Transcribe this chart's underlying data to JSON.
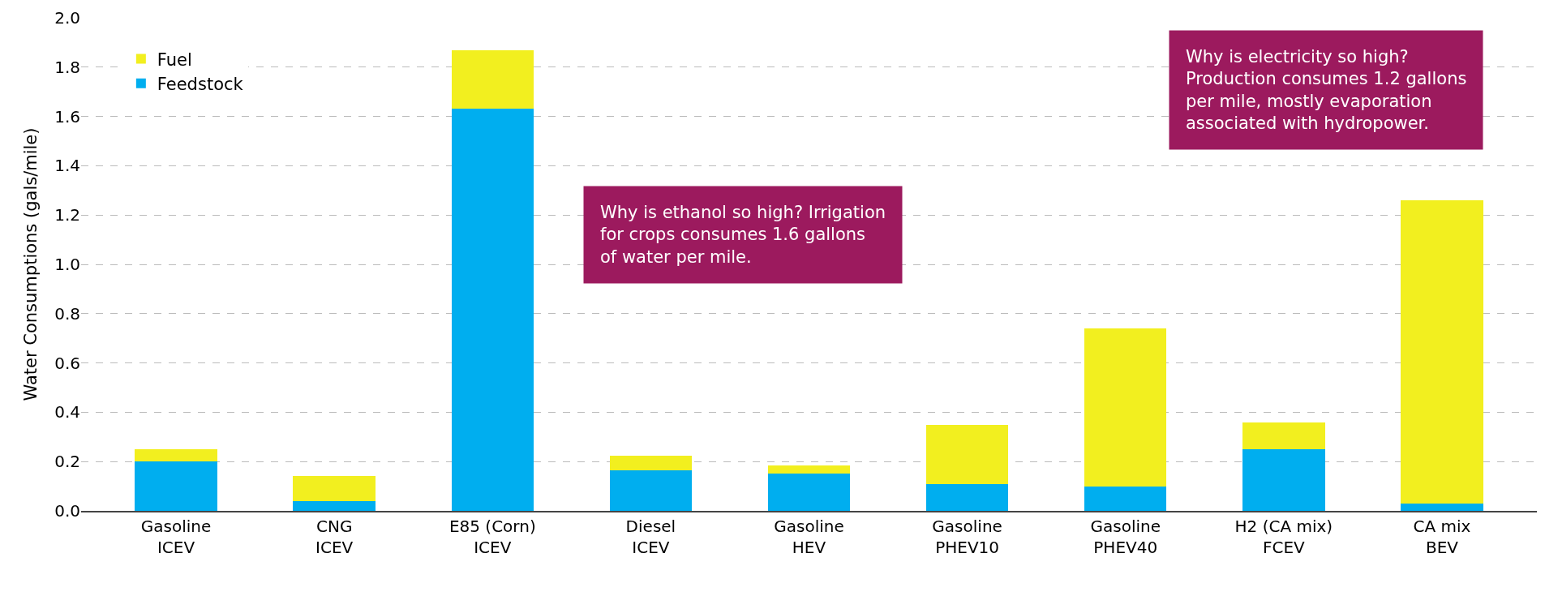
{
  "chart_data": {
    "type": "bar",
    "stacked": true,
    "ylabel": "Water Consumptions (gals/mile)",
    "categories": [
      "Gasoline\nICEV",
      "CNG\nICEV",
      "E85 (Corn)\nICEV",
      "Diesel\nICEV",
      "Gasoline\nHEV",
      "Gasoline\nPHEV10",
      "Gasoline\nPHEV40",
      "H2 (CA mix)\nFCEV",
      "CA mix\nBEV"
    ],
    "series": [
      {
        "name": "Feedstock",
        "color": "#00aeef",
        "values": [
          0.2,
          0.04,
          1.63,
          0.165,
          0.15,
          0.11,
          0.1,
          0.25,
          0.03
        ]
      },
      {
        "name": "Fuel",
        "color": "#f2ef1f",
        "values": [
          0.05,
          0.1,
          0.24,
          0.06,
          0.035,
          0.24,
          0.64,
          0.11,
          1.23
        ]
      }
    ],
    "ylim": [
      0,
      2.0
    ],
    "yticks": [
      {
        "value": 0,
        "label": "0.0"
      },
      0.2,
      0.4,
      0.6,
      0.8,
      {
        "value": 1,
        "label": "1.0"
      },
      1.2,
      1.4,
      1.6,
      1.8,
      {
        "value": 2,
        "label": "2.0"
      }
    ],
    "grid": "y",
    "legend": "top left",
    "annotations": [
      "Why is ethanol so high? Irrigation\nfor crops consumes 1.6 gallons\nof water per mile.",
      "Why is electricity so high?\nProduction consumes 1.2 gallons\nper mile, mostly evaporation\nassociated with hydropower."
    ]
  }
}
